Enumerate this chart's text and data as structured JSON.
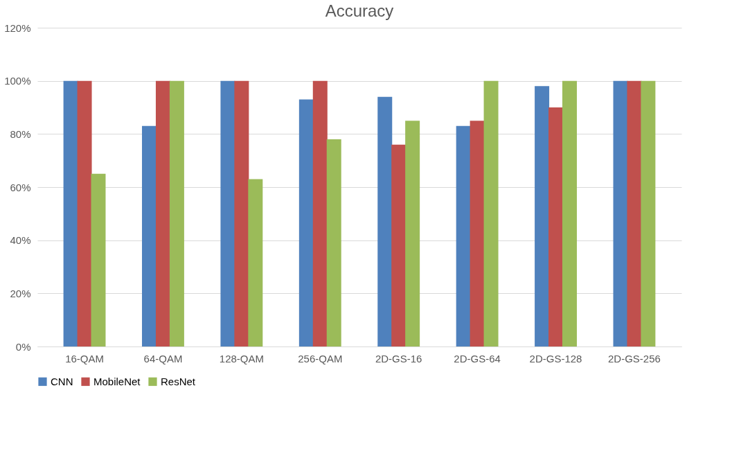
{
  "chart_data": {
    "type": "bar",
    "title": "Accuracy",
    "categories": [
      "16-QAM",
      "64-QAM",
      "128-QAM",
      "256-QAM",
      "2D-GS-16",
      "2D-GS-64",
      "2D-GS-128",
      "2D-GS-256"
    ],
    "series": [
      {
        "name": "CNN",
        "color": "#4f81bd",
        "values": [
          100,
          83,
          100,
          93,
          94,
          83,
          98,
          100
        ]
      },
      {
        "name": "MobileNet",
        "color": "#c0504d",
        "values": [
          100,
          100,
          100,
          100,
          76,
          85,
          90,
          100
        ]
      },
      {
        "name": "ResNet",
        "color": "#9bbb59",
        "values": [
          65,
          100,
          63,
          78,
          85,
          100,
          100,
          100
        ]
      }
    ],
    "ylim": [
      0,
      120
    ],
    "yticks": [
      {
        "value": 0,
        "label": "0%"
      },
      {
        "value": 20,
        "label": "20%"
      },
      {
        "value": 40,
        "label": "40%"
      },
      {
        "value": 60,
        "label": "60%"
      },
      {
        "value": 80,
        "label": "80%"
      },
      {
        "value": 100,
        "label": "100%"
      },
      {
        "value": 120,
        "label": "120%"
      }
    ],
    "grid": "y",
    "legend": "bottom"
  }
}
